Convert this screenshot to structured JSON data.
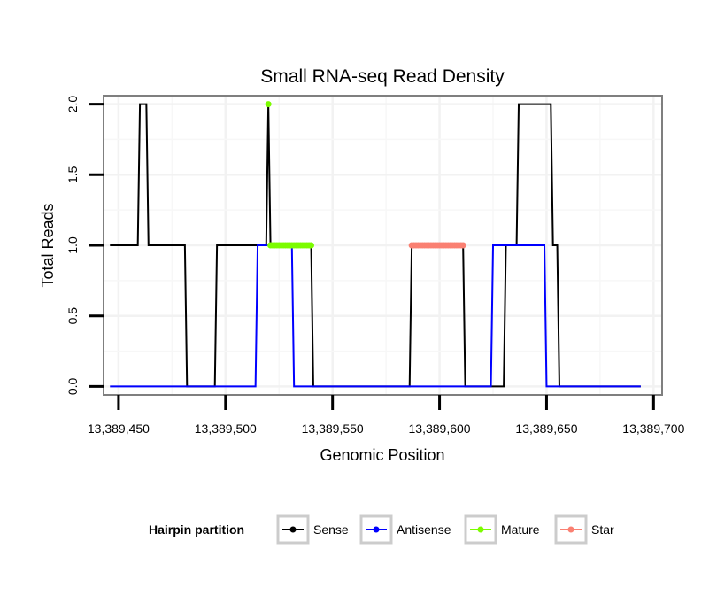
{
  "chart_data": {
    "type": "line",
    "title": "Small RNA-seq Read Density",
    "xlabel": "Genomic Position",
    "ylabel": "Total Reads",
    "xlim": [
      13389443,
      13389704
    ],
    "ylim": [
      -0.06,
      2.06
    ],
    "x_ticks": [
      13389450,
      13389500,
      13389550,
      13389600,
      13389650,
      13389700
    ],
    "x_tick_labels": [
      "13,389,450",
      "13,389,500",
      "13,389,550",
      "13,389,600",
      "13,389,650",
      "13,389,700"
    ],
    "y_ticks": [
      0,
      0.5,
      1,
      1.5,
      2
    ],
    "y_tick_labels": [
      "0.0",
      "0.5",
      "1.0",
      "1.5",
      "2.0"
    ],
    "grid": true,
    "legend": {
      "title": "Hairpin partition",
      "position": "bottom",
      "entries": [
        {
          "name": "Sense",
          "color": "#000000"
        },
        {
          "name": "Antisense",
          "color": "#0000ff"
        },
        {
          "name": "Mature",
          "color": "#7cfc00"
        },
        {
          "name": "Star",
          "color": "#fa8072"
        }
      ]
    },
    "series": [
      {
        "name": "Sense",
        "color": "#000000",
        "style": "line",
        "x": [
          13389446,
          13389459,
          13389460,
          13389463,
          13389464,
          13389481,
          13389482,
          13389495,
          13389496,
          13389519,
          13389520,
          13389521,
          13389522,
          13389540,
          13389541,
          13389586,
          13389587,
          13389611,
          13389612,
          13389630,
          13389631,
          13389636,
          13389637,
          13389652,
          13389653,
          13389655,
          13389656,
          13389694
        ],
        "values": [
          1,
          1,
          2,
          2,
          1,
          1,
          0,
          0,
          1,
          1,
          2,
          1,
          1,
          1,
          0,
          0,
          1,
          1,
          0,
          0,
          1,
          1,
          2,
          2,
          1,
          1,
          0,
          0
        ]
      },
      {
        "name": "Antisense",
        "color": "#0000ff",
        "style": "line",
        "x": [
          13389446,
          13389514,
          13389515,
          13389531,
          13389532,
          13389624,
          13389625,
          13389649,
          13389650,
          13389694
        ],
        "values": [
          0,
          0,
          1,
          1,
          0,
          0,
          1,
          1,
          0,
          0
        ]
      },
      {
        "name": "Mature",
        "color": "#7cfc00",
        "style": "points",
        "x": [
          13389520,
          13389521,
          13389522,
          13389523,
          13389524,
          13389525,
          13389526,
          13389527,
          13389528,
          13389529,
          13389530,
          13389531,
          13389532,
          13389533,
          13389534,
          13389535,
          13389536,
          13389537,
          13389538,
          13389539,
          13389540
        ],
        "values": [
          2,
          1,
          1,
          1,
          1,
          1,
          1,
          1,
          1,
          1,
          1,
          1,
          1,
          1,
          1,
          1,
          1,
          1,
          1,
          1,
          1
        ]
      },
      {
        "name": "Star",
        "color": "#fa8072",
        "style": "points",
        "x": [
          13389587,
          13389588,
          13389589,
          13389590,
          13389591,
          13389592,
          13389593,
          13389594,
          13389595,
          13389596,
          13389597,
          13389598,
          13389599,
          13389600,
          13389601,
          13389602,
          13389603,
          13389604,
          13389605,
          13389606,
          13389607,
          13389608,
          13389609,
          13389610,
          13389611
        ],
        "values": [
          1,
          1,
          1,
          1,
          1,
          1,
          1,
          1,
          1,
          1,
          1,
          1,
          1,
          1,
          1,
          1,
          1,
          1,
          1,
          1,
          1,
          1,
          1,
          1,
          1
        ]
      }
    ]
  }
}
